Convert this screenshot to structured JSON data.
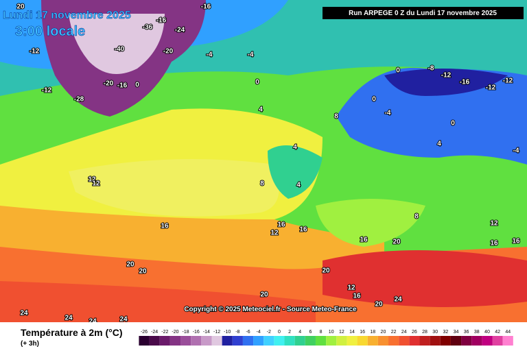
{
  "header": {
    "date": "Lundi 17 novembre 2025",
    "time": "3:00 locale",
    "run": "Run ARPEGE 0 Z du Lundi 17 novembre 2025"
  },
  "copyright": "Copyright © 2025 Meteociel.fr - Source Meteo-France",
  "map_labels": [
    20,
    -16,
    -16,
    -24,
    -36,
    -40,
    -20,
    -12,
    -12,
    -28,
    -20,
    -16,
    0,
    -4,
    -4,
    0,
    4,
    0,
    0,
    -8,
    -12,
    -16,
    -12,
    -12,
    -4,
    -4,
    0,
    4,
    8,
    4,
    8,
    4,
    12,
    12,
    16,
    16,
    16,
    12,
    20,
    20,
    24,
    24,
    24,
    24,
    20,
    20,
    16,
    20,
    24,
    16,
    12,
    20,
    16,
    16,
    12,
    8
  ],
  "legend": {
    "title": "Température à 2m (°C)",
    "subtitle": "(+ 3h)",
    "ticks": [
      -26,
      -24,
      -22,
      -20,
      -18,
      -16,
      -14,
      -12,
      -10,
      -8,
      -6,
      -4,
      -2,
      0,
      2,
      4,
      6,
      8,
      10,
      12,
      14,
      16,
      18,
      20,
      22,
      24,
      26,
      28,
      30,
      32,
      34,
      36,
      38,
      40,
      42,
      44
    ],
    "colors": [
      "#2a0030",
      "#4a0a4a",
      "#6a1a6a",
      "#843484",
      "#9a4e9a",
      "#b070b0",
      "#c89ac8",
      "#e0c8e0",
      "#2020a0",
      "#3040d0",
      "#3070f0",
      "#30a0ff",
      "#40d0ff",
      "#40f0f0",
      "#30e0c0",
      "#30d090",
      "#40d060",
      "#60e040",
      "#a0f040",
      "#d0f040",
      "#f0f040",
      "#f8d830",
      "#f8b030",
      "#f89030",
      "#f87030",
      "#f05030",
      "#e03030",
      "#c02020",
      "#a01010",
      "#800000",
      "#600010",
      "#800040",
      "#a00060",
      "#c00080",
      "#e040a0",
      "#ff80d0"
    ]
  }
}
